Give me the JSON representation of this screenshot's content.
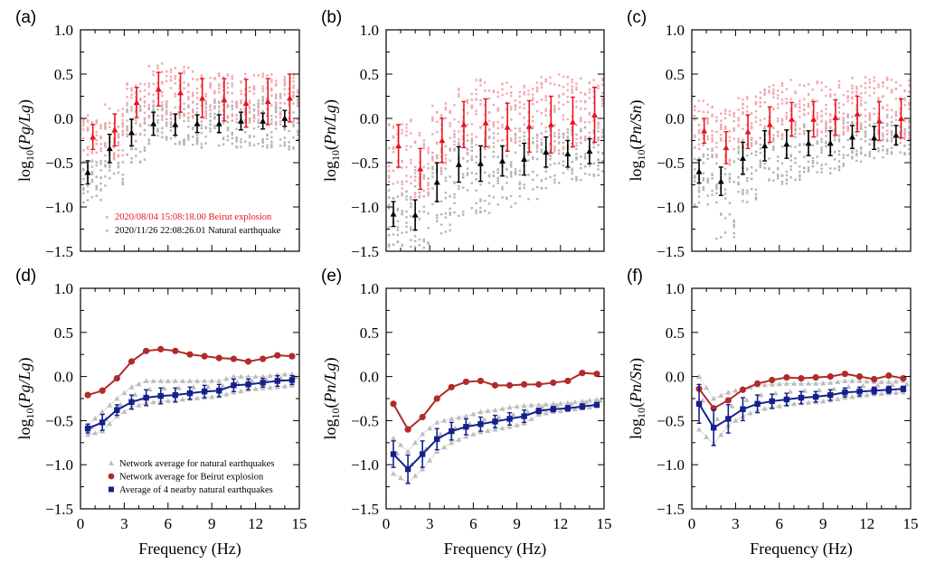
{
  "chart_data": [
    {
      "panel": "(a)",
      "type": "scatter",
      "ylabel": "log10(Pg/Lg)",
      "xlabel": "",
      "xlim": [
        0,
        15
      ],
      "ylim": [
        -1.5,
        1.0
      ],
      "xticks": [
        0,
        3,
        6,
        9,
        12,
        15
      ],
      "yticks": [
        -1.5,
        -1.0,
        -0.5,
        0.0,
        0.5,
        1.0
      ],
      "show_xticklabels": false,
      "x": [
        0.5,
        2,
        3.5,
        5,
        6.5,
        8,
        9.5,
        11,
        12.5,
        14
      ],
      "series": [
        {
          "name": "2020/11/26 22:08:26.01 Natural earthquake",
          "color": "#000000",
          "scatter_color": "#b4b4b4",
          "mean": [
            -0.61,
            -0.34,
            -0.16,
            -0.06,
            -0.07,
            -0.06,
            -0.06,
            -0.03,
            -0.03,
            0.0
          ],
          "err": [
            0.13,
            0.16,
            0.15,
            0.13,
            0.12,
            0.1,
            0.1,
            0.1,
            0.09,
            0.09
          ],
          "scatter_range": [
            [
              -0.95,
              -0.45
            ],
            [
              -0.8,
              -0.05
            ],
            [
              -0.5,
              0.15
            ],
            [
              -0.3,
              0.15
            ],
            [
              -0.3,
              0.15
            ],
            [
              -0.33,
              0.2
            ],
            [
              -0.35,
              0.2
            ],
            [
              -0.33,
              0.2
            ],
            [
              -0.35,
              0.25
            ],
            [
              -0.35,
              0.3
            ]
          ]
        },
        {
          "name": "2020/08/04 15:08:18.00 Beirut explosion",
          "color": "#e8141e",
          "scatter_color": "#f4a6b0",
          "mean": [
            -0.21,
            -0.13,
            0.18,
            0.33,
            0.29,
            0.23,
            0.21,
            0.17,
            0.19,
            0.23
          ],
          "err": [
            0.14,
            0.18,
            0.17,
            0.19,
            0.22,
            0.22,
            0.24,
            0.27,
            0.26,
            0.27
          ],
          "scatter_range": [
            [
              -0.5,
              0.05
            ],
            [
              -0.5,
              0.2
            ],
            [
              -0.2,
              0.4
            ],
            [
              0,
              0.63
            ],
            [
              -0.05,
              0.58
            ],
            [
              0,
              0.53
            ],
            [
              0,
              0.52
            ],
            [
              -0.05,
              0.52
            ],
            [
              -0.05,
              0.52
            ],
            [
              -0.05,
              0.52
            ]
          ]
        }
      ],
      "legend": [
        "2020/08/04 15:08:18.00 Beirut explosion",
        "2020/11/26 22:08:26.01 Natural earthquake"
      ],
      "legend_position": "bottom"
    },
    {
      "panel": "(b)",
      "type": "scatter",
      "ylabel": "log10(Pn/Lg)",
      "xlabel": "",
      "xlim": [
        0,
        15
      ],
      "ylim": [
        -1.5,
        1.0
      ],
      "xticks": [
        0,
        3,
        6,
        9,
        12,
        15
      ],
      "yticks": [
        -1.5,
        -1.0,
        -0.5,
        0.0,
        0.5,
        1.0
      ],
      "show_xticklabels": false,
      "x": [
        0.5,
        2,
        3.5,
        5,
        6.5,
        8,
        9.5,
        11,
        12.5,
        14
      ],
      "series": [
        {
          "name": "2020/11/26 22:08:26.01 Natural earthquake",
          "color": "#000000",
          "scatter_color": "#b4b4b4",
          "mean": [
            -1.08,
            -1.09,
            -0.72,
            -0.52,
            -0.51,
            -0.48,
            -0.46,
            -0.38,
            -0.4,
            -0.37
          ],
          "err": [
            0.14,
            0.17,
            0.22,
            0.2,
            0.2,
            0.17,
            0.18,
            0.17,
            0.15,
            0.14
          ],
          "scatter_range": [
            [
              -1.45,
              -0.8
            ],
            [
              -1.5,
              -0.5
            ],
            [
              -1.3,
              -0.3
            ],
            [
              -1.1,
              -0.2
            ],
            [
              -1.1,
              -0.2
            ],
            [
              -1.0,
              -0.15
            ],
            [
              -0.97,
              -0.1
            ],
            [
              -0.8,
              -0.05
            ],
            [
              -0.7,
              -0.1
            ],
            [
              -0.65,
              -0.1
            ]
          ]
        },
        {
          "name": "2020/08/04 15:08:18.00 Beirut explosion",
          "color": "#e8141e",
          "scatter_color": "#f4a6b0",
          "mean": [
            -0.31,
            -0.57,
            -0.25,
            -0.07,
            -0.05,
            -0.1,
            -0.09,
            -0.07,
            -0.04,
            0.04
          ],
          "err": [
            0.24,
            0.23,
            0.25,
            0.26,
            0.27,
            0.27,
            0.29,
            0.32,
            0.28,
            0.31
          ],
          "scatter_range": [
            [
              -0.8,
              -0.05
            ],
            [
              -0.9,
              0
            ],
            [
              -0.6,
              0.2
            ],
            [
              -0.4,
              0.35
            ],
            [
              -0.35,
              0.45
            ],
            [
              -0.4,
              0.42
            ],
            [
              -0.4,
              0.42
            ],
            [
              -0.35,
              0.5
            ],
            [
              -0.35,
              0.48
            ],
            [
              -0.3,
              0.48
            ]
          ]
        }
      ]
    },
    {
      "panel": "(c)",
      "type": "scatter",
      "ylabel": "log10(Pn/Sn)",
      "xlabel": "",
      "xlim": [
        0,
        15
      ],
      "ylim": [
        -1.5,
        1.0
      ],
      "xticks": [
        0,
        3,
        6,
        9,
        12,
        15
      ],
      "yticks": [
        -1.5,
        -1.0,
        -0.5,
        0.0,
        0.5,
        1.0
      ],
      "show_xticklabels": false,
      "x": [
        0.5,
        2,
        3.5,
        5,
        6.5,
        8,
        9.5,
        11,
        12.5,
        14
      ],
      "series": [
        {
          "name": "2020/11/26 22:08:26.01 Natural earthquake",
          "color": "#000000",
          "scatter_color": "#b4b4b4",
          "mean": [
            -0.6,
            -0.71,
            -0.45,
            -0.31,
            -0.29,
            -0.28,
            -0.28,
            -0.21,
            -0.22,
            -0.19
          ],
          "err": [
            0.13,
            0.16,
            0.18,
            0.17,
            0.16,
            0.14,
            0.14,
            0.13,
            0.13,
            0.11
          ],
          "scatter_range": [
            [
              -1.0,
              -0.3
            ],
            [
              -1.37,
              -0.4
            ],
            [
              -0.95,
              -0.2
            ],
            [
              -0.75,
              -0.1
            ],
            [
              -0.75,
              -0.05
            ],
            [
              -0.62,
              -0.05
            ],
            [
              -0.65,
              0
            ],
            [
              -0.5,
              0.05
            ],
            [
              -0.45,
              0.05
            ],
            [
              -0.42,
              0.05
            ]
          ]
        },
        {
          "name": "2020/08/04 15:08:18.00 Beirut explosion",
          "color": "#e8141e",
          "scatter_color": "#f4a6b0",
          "mean": [
            -0.14,
            -0.33,
            -0.15,
            -0.07,
            -0.01,
            -0.01,
            0.01,
            0.05,
            -0.03,
            0.0
          ],
          "err": [
            0.14,
            0.18,
            0.19,
            0.2,
            0.19,
            0.2,
            0.2,
            0.2,
            0.22,
            0.22
          ],
          "scatter_range": [
            [
              -0.35,
              0.2
            ],
            [
              -0.55,
              0.1
            ],
            [
              -0.35,
              0.25
            ],
            [
              -0.25,
              0.38
            ],
            [
              -0.2,
              0.44
            ],
            [
              -0.2,
              0.42
            ],
            [
              -0.2,
              0.42
            ],
            [
              -0.2,
              0.5
            ],
            [
              -0.25,
              0.48
            ],
            [
              -0.25,
              0.45
            ]
          ]
        }
      ]
    },
    {
      "panel": "(d)",
      "type": "line",
      "ylabel": "log10(Pg/Lg)",
      "xlabel": "Frequency (Hz)",
      "xlim": [
        0,
        15
      ],
      "ylim": [
        -1.5,
        1.0
      ],
      "xticks": [
        0,
        3,
        6,
        9,
        12,
        15
      ],
      "yticks": [
        -1.5,
        -1.0,
        -0.5,
        0.0,
        0.5,
        1.0
      ],
      "show_xticklabels": true,
      "x": [
        0.5,
        1.5,
        2.5,
        3.5,
        4.5,
        5.5,
        6.5,
        7.5,
        8.5,
        9.5,
        10.5,
        11.5,
        12.5,
        13.5,
        14.5
      ],
      "series": [
        {
          "name": "Network average for natural earthquakes",
          "color": "#bdbdbd",
          "marker": "triangle",
          "upper": [
            -0.55,
            -0.4,
            -0.25,
            -0.12,
            -0.05,
            -0.05,
            -0.05,
            -0.05,
            -0.05,
            -0.05,
            0.0,
            0.0,
            0.0,
            0.02,
            0.03
          ],
          "lower": [
            -0.66,
            -0.62,
            -0.45,
            -0.35,
            -0.3,
            -0.28,
            -0.27,
            -0.25,
            -0.24,
            -0.22,
            -0.18,
            -0.15,
            -0.13,
            -0.12,
            -0.1
          ]
        },
        {
          "name": "Network average for Beirut explosion",
          "color": "#b22a2a",
          "marker": "circle",
          "values": [
            -0.21,
            -0.16,
            -0.02,
            0.17,
            0.29,
            0.31,
            0.29,
            0.25,
            0.23,
            0.21,
            0.2,
            0.17,
            0.2,
            0.24,
            0.23
          ]
        },
        {
          "name": "Average of 4 nearby natural earthquakes",
          "color": "#14218c",
          "marker": "square",
          "values": [
            -0.59,
            -0.52,
            -0.38,
            -0.29,
            -0.24,
            -0.22,
            -0.21,
            -0.19,
            -0.17,
            -0.16,
            -0.1,
            -0.09,
            -0.07,
            -0.05,
            -0.04
          ],
          "err": [
            0.05,
            0.09,
            0.06,
            0.08,
            0.09,
            0.09,
            0.08,
            0.07,
            0.07,
            0.07,
            0.07,
            0.06,
            0.05,
            0.06,
            0.05
          ]
        }
      ],
      "legend": [
        "Network average for natural earthquakes",
        "Network average for Beirut explosion",
        "Average of 4 nearby natural earthquakes"
      ],
      "legend_position": "bottom"
    },
    {
      "panel": "(e)",
      "type": "line",
      "ylabel": "log10(Pn/Lg)",
      "xlabel": "Frequency (Hz)",
      "xlim": [
        0,
        15
      ],
      "ylim": [
        -1.5,
        1.0
      ],
      "xticks": [
        0,
        3,
        6,
        9,
        12,
        15
      ],
      "yticks": [
        -1.5,
        -1.0,
        -0.5,
        0.0,
        0.5,
        1.0
      ],
      "show_xticklabels": true,
      "x": [
        0.5,
        1.5,
        2.5,
        3.5,
        4.5,
        5.5,
        6.5,
        7.5,
        8.5,
        9.5,
        10.5,
        11.5,
        12.5,
        13.5,
        14.5
      ],
      "series": [
        {
          "name": "Network average for natural earthquakes",
          "color": "#bdbdbd",
          "marker": "triangle",
          "upper": [
            -0.7,
            -0.85,
            -0.65,
            -0.52,
            -0.48,
            -0.45,
            -0.4,
            -0.38,
            -0.35,
            -0.33,
            -0.32,
            -0.31,
            -0.3,
            -0.28,
            -0.26
          ],
          "lower": [
            -1.1,
            -1.2,
            -1.05,
            -0.85,
            -0.75,
            -0.68,
            -0.63,
            -0.6,
            -0.57,
            -0.53,
            -0.43,
            -0.4,
            -0.38,
            -0.36,
            -0.34
          ]
        },
        {
          "name": "Network average for Beirut explosion",
          "color": "#b22a2a",
          "marker": "circle",
          "values": [
            -0.31,
            -0.6,
            -0.46,
            -0.25,
            -0.12,
            -0.06,
            -0.05,
            -0.1,
            -0.1,
            -0.09,
            -0.09,
            -0.07,
            -0.05,
            0.04,
            0.03
          ]
        },
        {
          "name": "Average of 4 nearby natural earthquakes",
          "color": "#14218c",
          "marker": "square",
          "values": [
            -0.88,
            -1.05,
            -0.88,
            -0.71,
            -0.62,
            -0.57,
            -0.54,
            -0.51,
            -0.48,
            -0.45,
            -0.39,
            -0.37,
            -0.36,
            -0.34,
            -0.32
          ],
          "err": [
            0.15,
            0.16,
            0.15,
            0.12,
            0.1,
            0.09,
            0.08,
            0.07,
            0.07,
            0.07,
            0.03,
            0.03,
            0.03,
            0.03,
            0.02
          ]
        }
      ]
    },
    {
      "panel": "(f)",
      "type": "line",
      "ylabel": "log10(Pn/Sn)",
      "xlabel": "Frequency (Hz)",
      "xlim": [
        0,
        15
      ],
      "ylim": [
        -1.5,
        1.0
      ],
      "xticks": [
        0,
        3,
        6,
        9,
        12,
        15
      ],
      "yticks": [
        -1.5,
        -1.0,
        -0.5,
        0.0,
        0.5,
        1.0
      ],
      "show_xticklabels": true,
      "x": [
        0.5,
        1.5,
        2.5,
        3.5,
        4.5,
        5.5,
        6.5,
        7.5,
        8.5,
        9.5,
        10.5,
        11.5,
        12.5,
        13.5,
        14.5
      ],
      "series": [
        {
          "name": "Network average for natural earthquakes",
          "color": "#bdbdbd",
          "marker": "triangle",
          "upper": [
            0.0,
            -0.25,
            -0.18,
            -0.14,
            -0.1,
            -0.09,
            -0.08,
            -0.08,
            -0.08,
            -0.07,
            -0.05,
            -0.05,
            -0.06,
            -0.06,
            -0.05
          ],
          "lower": [
            -0.6,
            -0.77,
            -0.55,
            -0.45,
            -0.38,
            -0.35,
            -0.32,
            -0.3,
            -0.29,
            -0.27,
            -0.24,
            -0.22,
            -0.2,
            -0.19,
            -0.18
          ]
        },
        {
          "name": "Network average for Beirut explosion",
          "color": "#b22a2a",
          "marker": "circle",
          "values": [
            -0.14,
            -0.36,
            -0.27,
            -0.15,
            -0.08,
            -0.04,
            -0.01,
            -0.02,
            -0.01,
            0.0,
            0.03,
            0.0,
            -0.03,
            0.01,
            -0.02
          ]
        },
        {
          "name": "Average of 4 nearby natural earthquakes",
          "color": "#14218c",
          "marker": "square",
          "values": [
            -0.31,
            -0.58,
            -0.48,
            -0.37,
            -0.31,
            -0.28,
            -0.26,
            -0.24,
            -0.23,
            -0.21,
            -0.18,
            -0.17,
            -0.16,
            -0.15,
            -0.14
          ],
          "err": [
            0.22,
            0.2,
            0.16,
            0.13,
            0.1,
            0.08,
            0.07,
            0.07,
            0.06,
            0.06,
            0.05,
            0.05,
            0.04,
            0.04,
            0.03
          ]
        }
      ]
    }
  ]
}
